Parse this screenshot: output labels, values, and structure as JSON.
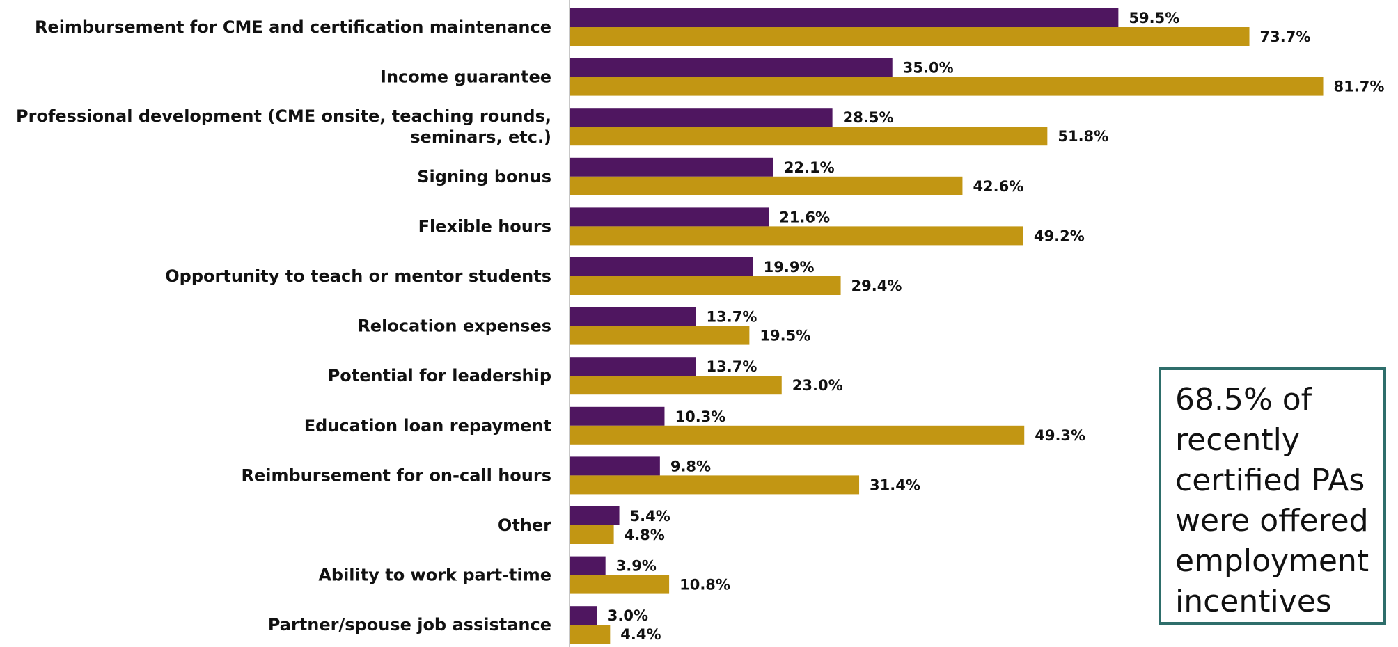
{
  "chart_data": {
    "type": "bar",
    "orientation": "horizontal",
    "categories": [
      "Reimbursement for CME and certification maintenance",
      "Income guarantee",
      "Professional development (CME onsite, teaching rounds, seminars, etc.)",
      "Signing bonus",
      "Flexible hours",
      "Opportunity to teach or mentor students",
      "Relocation expenses",
      "Potential for leadership",
      "Education loan repayment",
      "Reimbursement for on-call hours",
      "Other",
      "Ability to work part-time",
      "Partner/spouse job assistance"
    ],
    "series": [
      {
        "color": "#4f1660",
        "values": [
          59.5,
          35.0,
          28.5,
          22.1,
          21.6,
          19.9,
          13.7,
          13.7,
          10.3,
          9.8,
          5.4,
          3.9,
          3.0
        ],
        "labels": [
          "59.5%",
          "35.0%",
          "28.5%",
          "22.1%",
          "21.6%",
          "19.9%",
          "13.7%",
          "13.7%",
          "10.3%",
          "9.8%",
          "5.4%",
          "3.9%",
          "3.0%"
        ]
      },
      {
        "color": "#c29613",
        "values": [
          73.7,
          81.7,
          51.8,
          42.6,
          49.2,
          29.4,
          19.5,
          23.0,
          49.3,
          31.4,
          4.8,
          10.8,
          4.4
        ],
        "labels": [
          "73.7%",
          "81.7%",
          "51.8%",
          "42.6%",
          "49.2%",
          "29.4%",
          "19.5%",
          "23.0%",
          "49.3%",
          "31.4%",
          "4.8%",
          "10.8%",
          "4.4%"
        ]
      }
    ],
    "xlim": [
      0,
      100
    ],
    "grid": false,
    "legend": "none"
  },
  "callout": {
    "text": "68.5% of recently certified PAs were offered employment incentives"
  }
}
